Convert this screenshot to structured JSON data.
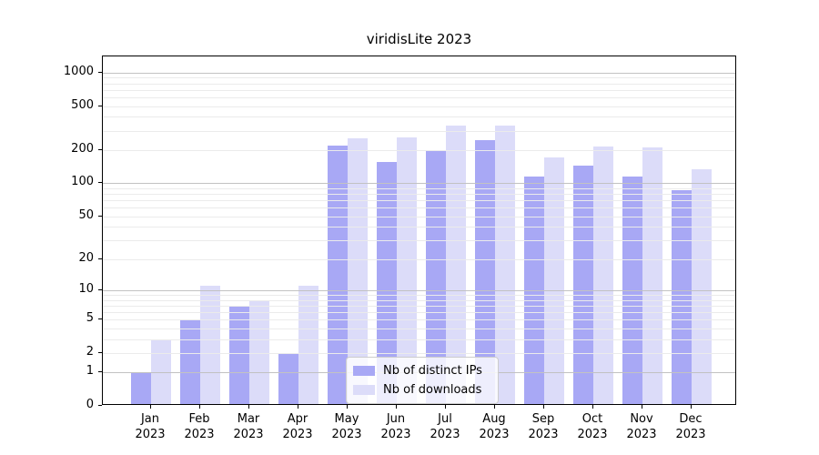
{
  "chart_data": {
    "type": "bar",
    "title": "viridisLite 2023",
    "categories": [
      "Jan 2023",
      "Feb 2023",
      "Mar 2023",
      "Apr 2023",
      "May 2023",
      "Jun 2023",
      "Jul 2023",
      "Aug 2023",
      "Sep 2023",
      "Oct 2023",
      "Nov 2023",
      "Dec 2023"
    ],
    "series": [
      {
        "name": "Nb of distinct IPs",
        "color": "#a8a8f5",
        "values": [
          1,
          5,
          7,
          2,
          220,
          155,
          200,
          245,
          115,
          145,
          115,
          87
        ]
      },
      {
        "name": "Nb of downloads",
        "color": "#dcdcf9",
        "values": [
          3,
          11,
          8,
          11,
          255,
          260,
          330,
          335,
          170,
          215,
          210,
          135
        ]
      }
    ],
    "yscale": "log1p",
    "ylim": [
      0,
      1400
    ],
    "ytick_values": [
      0,
      1,
      2,
      5,
      10,
      20,
      50,
      100,
      200,
      500,
      1000
    ],
    "ytick_labels": [
      "0",
      "1",
      "2",
      "5",
      "10",
      "20",
      "50",
      "100",
      "200",
      "500",
      "1000"
    ],
    "grid": true,
    "grid_major_at": [
      1,
      10,
      100,
      1000
    ],
    "grid_major_color": "#c2c2c2",
    "grid_minor_color": "#ebebeb",
    "legend_position": "lower center"
  }
}
